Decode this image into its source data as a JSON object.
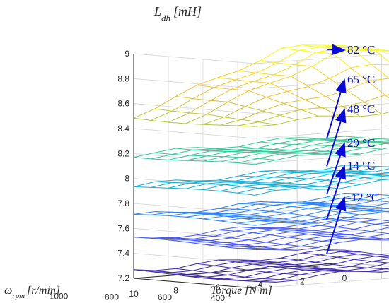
{
  "chart_data": {
    "type": "surface",
    "title": "L",
    "title_sub": "dh",
    "title_unit": "[mH]",
    "zlabel": "",
    "xlabel_prefix": "Torque ",
    "xlabel_unit": "[N·m]",
    "ylabel_symbol": "ω",
    "ylabel_sub": "rpm",
    "ylabel_unit": "[r/min]",
    "zlim": [
      7.2,
      9.0
    ],
    "z_ticks": [
      "7.2",
      "7.4",
      "7.6",
      "7.8",
      "8",
      "8.2",
      "8.4",
      "8.6",
      "8.8",
      "9"
    ],
    "x_ticks": [
      "10",
      "8",
      "6",
      "4",
      "2",
      "0"
    ],
    "y_ticks": [
      "400",
      "600",
      "800",
      "1000"
    ],
    "grid": true,
    "colormap": "parula",
    "torque_values": [
      0,
      1,
      2,
      3,
      4,
      5,
      6,
      7,
      8,
      9,
      10
    ],
    "speed_values": [
      300,
      400,
      500,
      600,
      700,
      800,
      900,
      1000
    ],
    "series": [
      {
        "name": "-12 °C",
        "base": 7.25
      },
      {
        "name": "14 °C",
        "base": 7.5
      },
      {
        "name": "29 °C",
        "base": 7.7
      },
      {
        "name": "48 °C",
        "base": 7.95
      },
      {
        "name": "65 °C",
        "base": 8.2
      },
      {
        "name": "82 °C",
        "base": 8.5
      }
    ],
    "annotations": [
      {
        "label": "82 °C"
      },
      {
        "label": "65 °C"
      },
      {
        "label": "48 °C"
      },
      {
        "label": "29 °C"
      },
      {
        "label": "14 °C"
      },
      {
        "label": "-12 °C"
      }
    ]
  }
}
